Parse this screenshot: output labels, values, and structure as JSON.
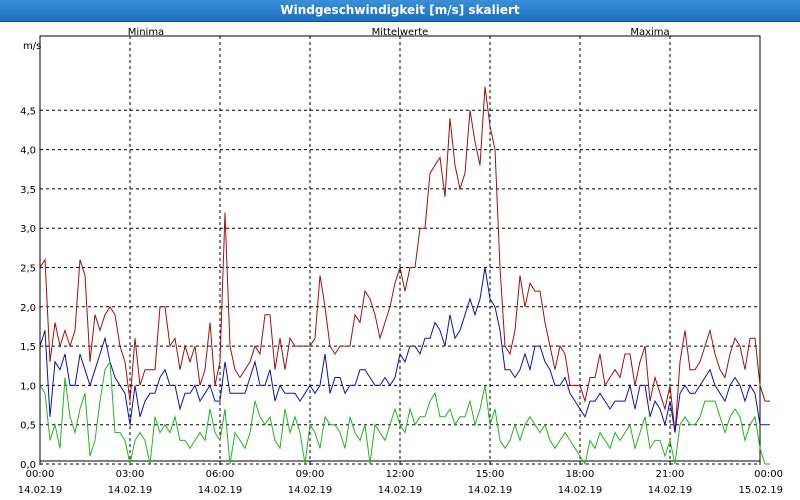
{
  "window": {
    "title": "Windgeschwindigkeit [m/s] skaliert"
  },
  "legend": {
    "min_label": "Minima",
    "mean_label": "Mittelwerte",
    "max_label": "Maxima"
  },
  "colors": {
    "min": "#22b522",
    "mean": "#1010b0",
    "max": "#a01010",
    "grid": "#000000",
    "title_bg": "#2a7fd0"
  },
  "chart_data": {
    "type": "line",
    "title": "Windgeschwindigkeit [m/s] skaliert",
    "ylabel": "m/s",
    "xlabel": "",
    "ylim": [
      0,
      5
    ],
    "yticks": [
      "0,0",
      "0,5",
      "1,0",
      "1,5",
      "2,0",
      "2,5",
      "3,0",
      "3,5",
      "4,0",
      "4,5"
    ],
    "xlim_hours": [
      0,
      24
    ],
    "xticks": [
      {
        "time": "00:00",
        "date": "14.02.19"
      },
      {
        "time": "03:00",
        "date": "14.02.19"
      },
      {
        "time": "06:00",
        "date": "14.02.19"
      },
      {
        "time": "09:00",
        "date": "14.02.19"
      },
      {
        "time": "12:00",
        "date": "14.02.19"
      },
      {
        "time": "15:00",
        "date": "14.02.19"
      },
      {
        "time": "18:00",
        "date": "14.02.19"
      },
      {
        "time": "21:00",
        "date": "14.02.19"
      },
      {
        "time": "00:00",
        "date": "15.02.19"
      }
    ],
    "grid": true,
    "legend_position": "top",
    "x_interval_minutes": 10,
    "series": [
      {
        "name": "Maxima",
        "values": [
          2.5,
          2.6,
          1.3,
          1.8,
          1.5,
          1.7,
          1.5,
          1.7,
          2.6,
          2.4,
          1.3,
          1.9,
          1.7,
          1.9,
          2.0,
          1.9,
          1.5,
          1.3,
          0.8,
          1.6,
          1.0,
          1.2,
          1.2,
          1.2,
          2.0,
          2.0,
          1.5,
          1.6,
          1.2,
          1.5,
          1.3,
          1.5,
          1.0,
          1.2,
          1.8,
          1.0,
          1.3,
          3.2,
          1.5,
          1.2,
          1.1,
          1.2,
          1.3,
          1.5,
          1.4,
          1.9,
          1.9,
          1.2,
          1.6,
          1.2,
          1.6,
          1.5,
          1.5,
          1.5,
          1.5,
          1.6,
          2.4,
          2.0,
          1.5,
          1.4,
          1.5,
          1.5,
          1.5,
          1.9,
          1.8,
          2.2,
          2.1,
          1.9,
          1.6,
          1.8,
          2.0,
          2.3,
          2.5,
          2.2,
          2.5,
          2.5,
          3.0,
          3.0,
          3.7,
          3.8,
          3.9,
          3.4,
          4.4,
          3.8,
          3.5,
          3.7,
          4.5,
          4.1,
          3.8,
          4.8,
          4.3,
          4.0,
          2.5,
          1.5,
          1.4,
          1.7,
          2.4,
          2.0,
          2.3,
          2.2,
          2.2,
          1.8,
          1.5,
          1.2,
          1.5,
          1.4,
          1.0,
          1.0,
          1.0,
          0.8,
          1.1,
          1.1,
          1.4,
          1.0,
          1.1,
          1.2,
          1.1,
          1.4,
          1.4,
          1.0,
          1.3,
          1.5,
          0.8,
          1.1,
          0.9,
          0.7,
          1.0,
          0.4,
          1.3,
          1.7,
          1.2,
          1.2,
          1.3,
          1.5,
          1.7,
          1.4,
          1.2,
          1.1,
          1.4,
          1.6,
          1.5,
          1.2,
          1.6,
          1.6,
          1.0,
          0.8,
          0.8
        ]
      },
      {
        "name": "Mittelwerte",
        "values": [
          1.5,
          1.7,
          0.6,
          1.3,
          1.2,
          1.4,
          1.0,
          1.0,
          1.4,
          1.2,
          1.0,
          1.2,
          1.4,
          1.6,
          1.3,
          1.1,
          1.0,
          0.9,
          0.5,
          1.0,
          0.6,
          0.8,
          0.9,
          0.9,
          1.1,
          1.2,
          1.0,
          1.0,
          0.7,
          0.9,
          0.9,
          1.0,
          0.8,
          0.9,
          1.0,
          0.8,
          0.8,
          1.3,
          0.9,
          0.9,
          0.9,
          0.9,
          1.1,
          1.3,
          1.0,
          1.0,
          1.2,
          0.8,
          1.0,
          0.9,
          0.9,
          0.9,
          0.8,
          0.9,
          1.0,
          0.9,
          1.0,
          1.4,
          0.9,
          1.1,
          1.1,
          0.9,
          1.0,
          1.0,
          1.2,
          1.2,
          1.1,
          1.0,
          1.0,
          1.1,
          1.0,
          1.1,
          1.4,
          1.3,
          1.5,
          1.5,
          1.4,
          1.6,
          1.6,
          1.8,
          1.7,
          1.5,
          1.9,
          1.6,
          1.7,
          1.9,
          2.1,
          1.9,
          2.1,
          2.5,
          2.1,
          2.0,
          1.7,
          1.2,
          1.2,
          1.1,
          1.2,
          1.4,
          1.2,
          1.5,
          1.5,
          1.3,
          1.2,
          1.0,
          1.0,
          1.1,
          0.9,
          0.8,
          0.7,
          0.6,
          0.8,
          0.8,
          0.9,
          0.8,
          0.7,
          0.8,
          0.8,
          0.8,
          1.0,
          0.7,
          1.0,
          1.0,
          0.6,
          0.8,
          0.7,
          0.5,
          0.8,
          0.4,
          0.9,
          1.0,
          0.9,
          0.9,
          1.0,
          1.1,
          1.2,
          1.0,
          0.9,
          0.8,
          1.0,
          1.1,
          1.0,
          0.8,
          1.0,
          0.9,
          0.5,
          0.5,
          0.5
        ]
      },
      {
        "name": "Minima",
        "values": [
          1.0,
          0.9,
          0.3,
          0.5,
          0.2,
          1.1,
          0.6,
          0.4,
          0.7,
          0.9,
          0.1,
          0.3,
          0.8,
          1.2,
          1.3,
          0.4,
          0.4,
          0.3,
          0.0,
          0.3,
          0.4,
          0.3,
          0.0,
          0.6,
          0.4,
          0.5,
          0.4,
          0.6,
          0.3,
          0.3,
          0.2,
          0.3,
          0.4,
          0.3,
          0.7,
          0.4,
          0.3,
          0.7,
          0.0,
          0.4,
          0.3,
          0.2,
          0.4,
          0.8,
          0.6,
          0.5,
          0.6,
          0.3,
          0.2,
          0.7,
          0.4,
          0.6,
          0.4,
          0.0,
          0.5,
          0.4,
          0.2,
          0.6,
          0.5,
          0.5,
          0.4,
          0.2,
          0.6,
          0.4,
          0.3,
          0.5,
          0.0,
          0.5,
          0.4,
          0.3,
          0.5,
          0.7,
          0.5,
          0.4,
          0.7,
          0.5,
          0.6,
          0.6,
          0.8,
          0.9,
          0.6,
          0.6,
          0.7,
          0.5,
          0.6,
          0.6,
          0.8,
          0.5,
          0.7,
          1.0,
          0.5,
          0.7,
          0.3,
          0.2,
          0.3,
          0.5,
          0.3,
          0.5,
          0.6,
          0.5,
          0.4,
          0.5,
          0.3,
          0.2,
          0.3,
          0.4,
          0.3,
          0.2,
          0.1,
          0.0,
          0.3,
          0.2,
          0.4,
          0.3,
          0.2,
          0.4,
          0.3,
          0.4,
          0.5,
          0.2,
          0.4,
          0.6,
          0.2,
          0.3,
          0.3,
          0.1,
          0.3,
          0.0,
          0.5,
          0.6,
          0.5,
          0.5,
          0.6,
          0.8,
          0.8,
          0.8,
          0.6,
          0.4,
          0.6,
          0.7,
          0.6,
          0.3,
          0.5,
          0.6,
          0.2,
          0.0,
          0.0
        ]
      }
    ]
  }
}
